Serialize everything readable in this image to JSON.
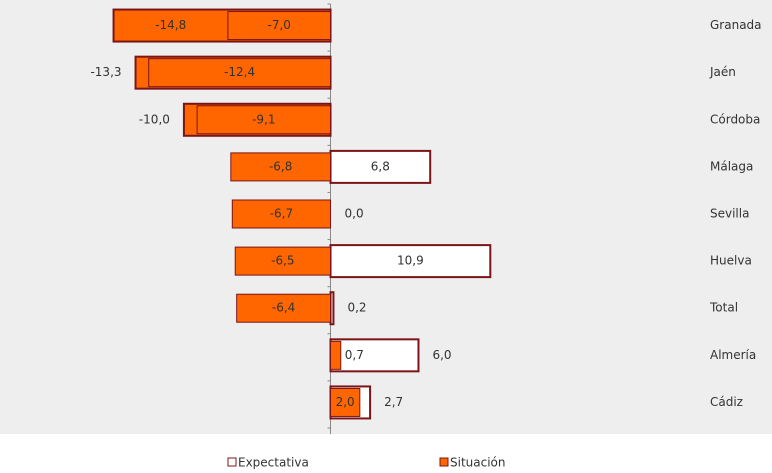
{
  "chart_data": {
    "type": "bar",
    "orientation": "horizontal",
    "categories": [
      "Granada",
      "Jaén",
      "Córdoba",
      "Málaga",
      "Sevilla",
      "Huelva",
      "Total",
      "Almería",
      "Cádiz"
    ],
    "series": [
      {
        "name": "Expectativa",
        "color": "#ffffff",
        "negative_color": "#ff6600",
        "border": "#7b1416",
        "values": [
          -14.8,
          -13.3,
          -10.0,
          6.8,
          0.0,
          10.9,
          0.2,
          6.0,
          2.7
        ],
        "value_labels": [
          "-14,8",
          "-13,3",
          "-10,0",
          "6,8",
          "0,0",
          "10,9",
          "0,2",
          "6,0",
          "2,7"
        ]
      },
      {
        "name": "Situación",
        "color": "#ff6600",
        "border": "#7b1416",
        "values": [
          -7.0,
          -12.4,
          -9.1,
          -6.8,
          -6.7,
          -6.5,
          -6.4,
          0.7,
          2.0
        ],
        "value_labels": [
          "-7,0",
          "-12,4",
          "-9,1",
          "-6,8",
          "-6,7",
          "-6,5",
          "-6,4",
          "0,7",
          "2,0"
        ]
      }
    ],
    "xlim": [
      -22,
      25
    ],
    "background": "#eeeeee"
  }
}
